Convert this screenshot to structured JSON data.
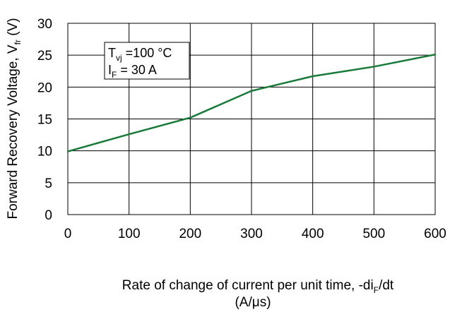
{
  "chart_data": {
    "type": "line",
    "x": [
      0,
      100,
      200,
      300,
      400,
      500,
      600
    ],
    "series": [
      {
        "values": [
          9.9,
          12.6,
          15.2,
          19.4,
          21.7,
          23.2,
          25.1
        ],
        "color": "#1a7a3a"
      }
    ],
    "xlim": [
      0,
      600
    ],
    "ylim": [
      0,
      30
    ],
    "xticks": [
      "0",
      "100",
      "200",
      "300",
      "400",
      "500",
      "600"
    ],
    "yticks": [
      "0",
      "5",
      "10",
      "15",
      "20",
      "25",
      "30"
    ],
    "xgrid": true,
    "ygrid": true,
    "xlabel": {
      "main": "Rate of change of current per unit time, -di",
      "sub": "F",
      "tail": "/dt",
      "line2": "(A/μs)"
    },
    "ylabel": {
      "main": "Forward Recovery Voltage, V",
      "sub": "fr",
      "tail": " (V)"
    },
    "annotation": {
      "line1": {
        "main": "T",
        "sub": "vj",
        "tail": " =100 °C"
      },
      "line2": {
        "main": "I",
        "sub": "F",
        "tail": " = 30 A"
      }
    }
  }
}
